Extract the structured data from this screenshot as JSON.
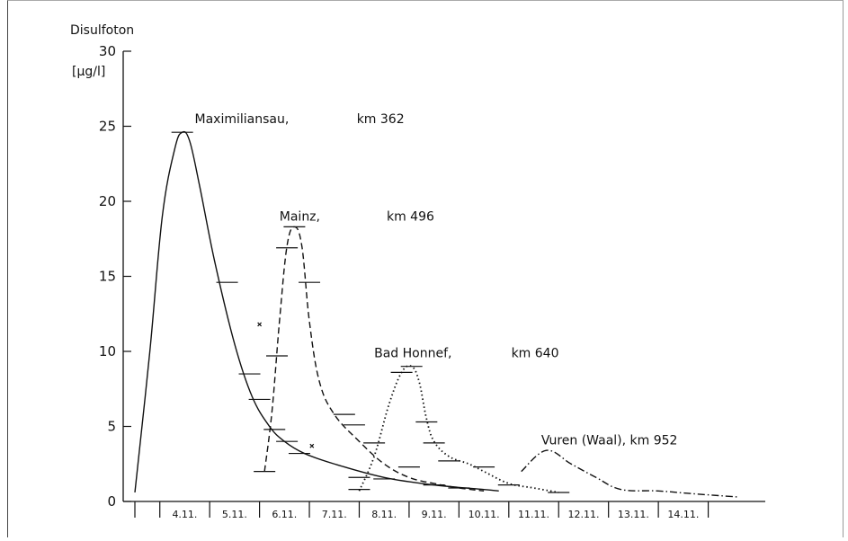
{
  "chart_data": {
    "type": "line",
    "y_title": "Disulfoton",
    "y_unit": "[µg/l]",
    "ylim": [
      0,
      30
    ],
    "yticks": [
      "0",
      "5",
      "10",
      "15",
      "20",
      "25",
      "30"
    ],
    "x_categories": [
      "4.11.",
      "5.11.",
      "6.11.",
      "7.11.",
      "8.11.",
      "9.11.",
      "10.11.",
      "11.11.",
      "12.11.",
      "13.11.",
      "14.11."
    ],
    "xlim": [
      0,
      12.5
    ],
    "grid": false,
    "series": [
      {
        "name": "Maximiliansau, km 362",
        "style": "solid",
        "points": [
          [
            0.0,
            0.6
          ],
          [
            0.3,
            10
          ],
          [
            0.55,
            19
          ],
          [
            0.8,
            23.5
          ],
          [
            0.95,
            24.6
          ],
          [
            1.1,
            24
          ],
          [
            1.3,
            21
          ],
          [
            1.6,
            16
          ],
          [
            2.0,
            10.5
          ],
          [
            2.35,
            7
          ],
          [
            2.7,
            5
          ],
          [
            3.0,
            4.0
          ],
          [
            3.4,
            3.2
          ],
          [
            4.0,
            2.5
          ],
          [
            5.0,
            1.6
          ],
          [
            6.0,
            1.1
          ],
          [
            7.0,
            0.8
          ],
          [
            7.3,
            0.7
          ]
        ],
        "measured": [
          [
            0.95,
            24.6
          ],
          [
            1.85,
            14.6
          ],
          [
            2.3,
            8.5
          ],
          [
            2.5,
            6.8
          ],
          [
            2.8,
            4.8
          ],
          [
            3.05,
            4.0
          ],
          [
            3.3,
            3.2
          ],
          [
            4.5,
            1.6
          ],
          [
            5.0,
            1.5
          ],
          [
            6.5,
            0.9
          ]
        ]
      },
      {
        "name": "Mainz, km 496",
        "style": "dashed",
        "points": [
          [
            2.6,
            2.0
          ],
          [
            2.75,
            6
          ],
          [
            2.9,
            12
          ],
          [
            3.05,
            17
          ],
          [
            3.2,
            18.3
          ],
          [
            3.35,
            17
          ],
          [
            3.5,
            12
          ],
          [
            3.7,
            8
          ],
          [
            4.0,
            5.8
          ],
          [
            4.5,
            4.0
          ],
          [
            5.0,
            2.5
          ],
          [
            5.5,
            1.6
          ],
          [
            6.0,
            1.2
          ],
          [
            6.5,
            0.9
          ],
          [
            7.0,
            0.7
          ]
        ],
        "measured": [
          [
            2.6,
            2.0
          ],
          [
            2.85,
            9.7
          ],
          [
            3.05,
            16.9
          ],
          [
            3.2,
            18.3
          ],
          [
            3.5,
            14.6
          ],
          [
            4.2,
            5.8
          ],
          [
            4.4,
            5.1
          ],
          [
            4.8,
            3.9
          ],
          [
            5.5,
            2.3
          ],
          [
            6.0,
            1.1
          ]
        ]
      },
      {
        "name": "Bad Honnef, km 640",
        "style": "dotted",
        "points": [
          [
            4.5,
            0.7
          ],
          [
            4.8,
            3
          ],
          [
            5.1,
            6.5
          ],
          [
            5.35,
            8.6
          ],
          [
            5.55,
            9.0
          ],
          [
            5.7,
            8
          ],
          [
            5.85,
            5.5
          ],
          [
            6.0,
            4.0
          ],
          [
            6.3,
            3.0
          ],
          [
            6.7,
            2.5
          ],
          [
            7.0,
            2.0
          ],
          [
            7.5,
            1.2
          ],
          [
            8.0,
            0.9
          ],
          [
            8.5,
            0.6
          ]
        ],
        "measured": [
          [
            4.5,
            0.8
          ],
          [
            5.35,
            8.6
          ],
          [
            5.55,
            9.0
          ],
          [
            5.85,
            5.3
          ],
          [
            6.0,
            3.9
          ],
          [
            6.3,
            2.7
          ],
          [
            7.0,
            2.3
          ],
          [
            7.5,
            1.1
          ],
          [
            8.5,
            0.6
          ]
        ]
      },
      {
        "name": "Vuren (Waal), km 952",
        "style": "dashdot",
        "points": [
          [
            7.75,
            2.0
          ],
          [
            8.25,
            3.4
          ],
          [
            8.75,
            2.5
          ],
          [
            9.25,
            1.6
          ],
          [
            9.75,
            0.8
          ],
          [
            10.5,
            0.7
          ],
          [
            11.25,
            0.5
          ],
          [
            12.1,
            0.3
          ]
        ],
        "measured": []
      }
    ],
    "stray_marks": [
      [
        2.5,
        11.8
      ],
      [
        3.55,
        3.7
      ]
    ],
    "annotations": [
      {
        "name_text": "Maximiliansau,",
        "km_text": "km 362",
        "x": 1.2,
        "y": 25.2,
        "km_x": 4.45
      },
      {
        "name_text": "Mainz,",
        "km_text": "km 496",
        "x": 2.9,
        "y": 18.7,
        "km_x": 5.05
      },
      {
        "name_text": "Bad Honnef,",
        "km_text": "km 640",
        "x": 4.8,
        "y": 9.6,
        "km_x": 7.55
      },
      {
        "name_text": "Vuren (Waal), km 952",
        "km_text": "",
        "x": 8.15,
        "y": 3.8,
        "km_x": 0
      }
    ]
  }
}
